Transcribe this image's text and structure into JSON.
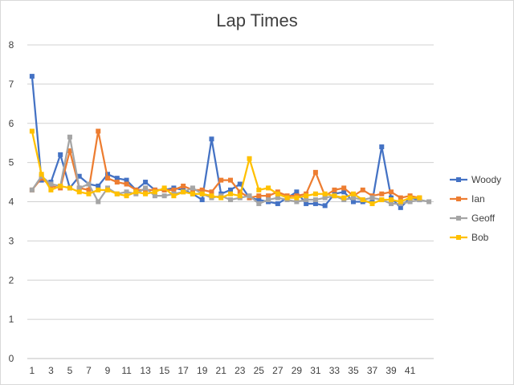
{
  "chart_data": {
    "type": "line",
    "title": "Lap Times",
    "xlabel": "",
    "ylabel": "",
    "ylim": [
      0,
      8
    ],
    "yticks": [
      0,
      1,
      2,
      3,
      4,
      5,
      6,
      7,
      8
    ],
    "x": [
      1,
      2,
      3,
      4,
      5,
      6,
      7,
      8,
      9,
      10,
      11,
      12,
      13,
      14,
      15,
      16,
      17,
      18,
      19,
      20,
      21,
      22,
      23,
      24,
      25,
      26,
      27,
      28,
      29,
      30,
      31,
      32,
      33,
      34,
      35,
      36,
      37,
      38,
      39,
      40,
      41,
      42,
      43
    ],
    "xtick_labels": [
      "1",
      "3",
      "5",
      "7",
      "9",
      "11",
      "13",
      "15",
      "17",
      "19",
      "21",
      "23",
      "25",
      "27",
      "29",
      "31",
      "33",
      "35",
      "37",
      "39",
      "41"
    ],
    "grid": true,
    "legend_position": "right",
    "series": [
      {
        "name": "Woody",
        "color": "#4472c4",
        "values": [
          7.2,
          4.55,
          4.5,
          5.2,
          4.35,
          4.65,
          4.45,
          4.4,
          4.7,
          4.6,
          4.55,
          4.3,
          4.5,
          4.3,
          4.3,
          4.35,
          4.3,
          4.2,
          4.05,
          5.6,
          4.2,
          4.3,
          4.45,
          4.1,
          4.05,
          4.0,
          3.95,
          4.1,
          4.25,
          3.95,
          3.95,
          3.9,
          4.2,
          4.25,
          4.0,
          4.0,
          4.0,
          5.4,
          4.1,
          3.85,
          4.1,
          4.05,
          null
        ]
      },
      {
        "name": "Ian",
        "color": "#ed7d31",
        "values": [
          4.3,
          4.6,
          4.4,
          4.35,
          5.3,
          4.35,
          4.3,
          5.8,
          4.6,
          4.5,
          4.45,
          4.3,
          4.3,
          4.3,
          4.3,
          4.3,
          4.4,
          4.3,
          4.3,
          4.25,
          4.55,
          4.55,
          4.25,
          4.1,
          4.15,
          4.15,
          4.25,
          4.15,
          4.15,
          4.2,
          4.75,
          4.15,
          4.3,
          4.35,
          4.15,
          4.3,
          4.15,
          4.2,
          4.25,
          4.1,
          4.15,
          4.1,
          null
        ]
      },
      {
        "name": "Geoff",
        "color": "#a5a5a5",
        "values": [
          4.3,
          4.65,
          4.45,
          4.4,
          5.65,
          4.35,
          4.45,
          4.0,
          4.35,
          4.2,
          4.25,
          4.2,
          4.35,
          4.15,
          4.15,
          4.2,
          4.25,
          4.35,
          4.2,
          4.1,
          4.15,
          4.05,
          4.1,
          4.15,
          3.95,
          4.05,
          4.1,
          4.05,
          4.0,
          4.05,
          4.05,
          4.1,
          4.15,
          4.05,
          4.1,
          4.05,
          4.1,
          4.05,
          3.95,
          3.95,
          4.0,
          4.05,
          4.0
        ]
      },
      {
        "name": "Bob",
        "color": "#ffc000",
        "values": [
          5.8,
          4.7,
          4.3,
          4.4,
          4.35,
          4.25,
          4.2,
          4.3,
          4.3,
          4.2,
          4.15,
          4.25,
          4.2,
          4.25,
          4.35,
          4.15,
          4.25,
          4.2,
          4.2,
          4.15,
          4.1,
          4.2,
          4.15,
          5.1,
          4.3,
          4.35,
          4.2,
          4.1,
          4.1,
          4.15,
          4.2,
          4.2,
          4.15,
          4.1,
          4.2,
          4.05,
          3.95,
          4.05,
          4.05,
          4.0,
          4.1,
          4.1,
          null
        ]
      }
    ]
  }
}
